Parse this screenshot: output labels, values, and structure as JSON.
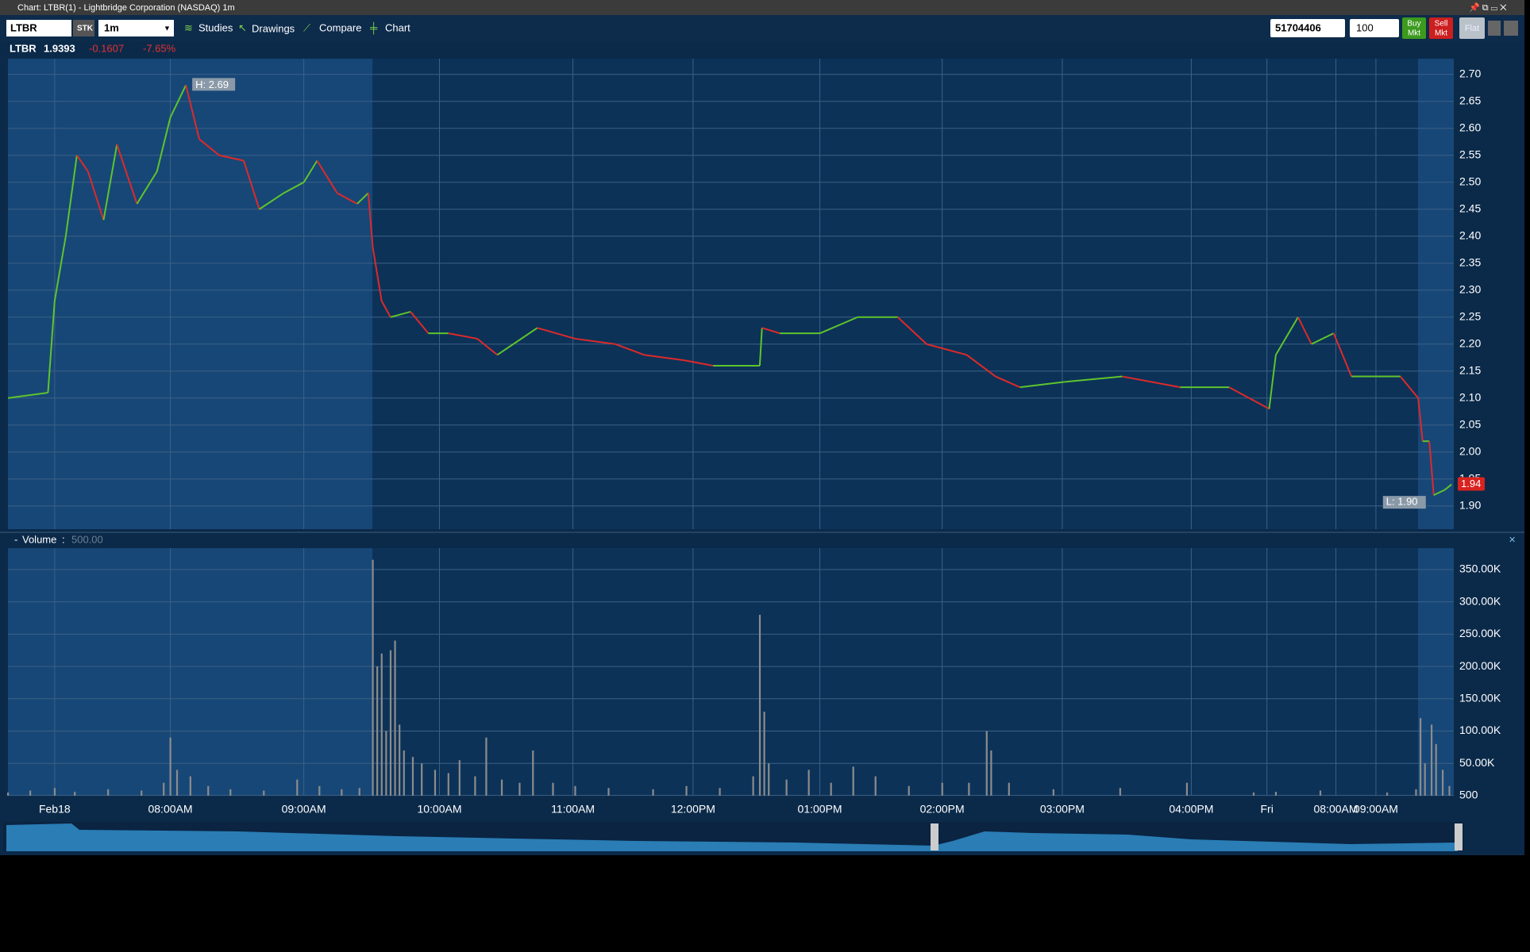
{
  "window": {
    "title": "Chart: LTBR(1) - Lightbridge Corporation (NASDAQ) 1m"
  },
  "toolbar": {
    "symbol": "LTBR",
    "sec_type": "STK",
    "interval": "1m",
    "buttons": [
      "Studies",
      "Drawings",
      "Compare",
      "Chart"
    ],
    "account": "51704406",
    "quantity": "100",
    "buy": [
      "Buy",
      "Mkt"
    ],
    "sell": [
      "Sell",
      "Mkt"
    ],
    "flat": "Flat"
  },
  "quote": {
    "symbol": "LTBR",
    "last": "1.9393",
    "change": "-0.1607",
    "change_pct": "-7.65%"
  },
  "chart_data": [
    {
      "type": "line",
      "ylim": [
        1.857,
        2.729
      ],
      "yticks": [
        {
          "value": 1.9,
          "label": "1.90"
        },
        1.95,
        {
          "value": 2.0,
          "label": "2.00"
        },
        2.05,
        {
          "value": 2.1,
          "label": "2.10"
        },
        2.15,
        {
          "value": 2.2,
          "label": "2.20"
        },
        2.25,
        {
          "value": 2.3,
          "label": "2.30"
        },
        2.35,
        {
          "value": 2.4,
          "label": "2.40"
        },
        2.45,
        {
          "value": 2.5,
          "label": "2.50"
        },
        2.55,
        {
          "value": 2.6,
          "label": "2.60"
        },
        2.65,
        {
          "value": 2.7,
          "label": "2.70"
        }
      ],
      "xlim": [
        0,
        650
      ],
      "grid": true,
      "colors": {
        "up": "#5fc42c",
        "down": "#dd2a2a"
      },
      "x": [
        0,
        18,
        21,
        26,
        31,
        36,
        43,
        49,
        58,
        67,
        73,
        80,
        86,
        95,
        106,
        113,
        124,
        133,
        139,
        148,
        157,
        162,
        164,
        168,
        172,
        181,
        189,
        198,
        211,
        220,
        238,
        255,
        273,
        286,
        304,
        317,
        338,
        339,
        347,
        365,
        382,
        400,
        413,
        431,
        444,
        455,
        475,
        501,
        527,
        549,
        567,
        570,
        580,
        586,
        596,
        604,
        626,
        634,
        636,
        639,
        641,
        646,
        649
      ],
      "values": [
        2.1,
        2.11,
        2.28,
        2.4,
        2.55,
        2.52,
        2.43,
        2.57,
        2.46,
        2.52,
        2.62,
        2.68,
        2.58,
        2.55,
        2.54,
        2.45,
        2.48,
        2.5,
        2.54,
        2.48,
        2.46,
        2.48,
        2.38,
        2.28,
        2.25,
        2.26,
        2.22,
        2.22,
        2.21,
        2.18,
        2.23,
        2.21,
        2.2,
        2.18,
        2.17,
        2.16,
        2.16,
        2.23,
        2.22,
        2.22,
        2.25,
        2.25,
        2.2,
        2.18,
        2.14,
        2.12,
        2.13,
        2.14,
        2.12,
        2.12,
        2.08,
        2.18,
        2.25,
        2.2,
        2.22,
        2.14,
        2.14,
        2.1,
        2.02,
        2.02,
        1.92,
        1.93,
        1.94
      ],
      "high_label": "H: 2.69",
      "low_label": "L: 1.90",
      "last_label": "1.94"
    },
    {
      "type": "bar",
      "title": "Volume",
      "current_value": "500.00",
      "ylim": [
        0,
        383000
      ],
      "yticks": [
        500,
        {
          "value": 50000,
          "label": "50.00K"
        },
        {
          "value": 100000,
          "label": "100.00K"
        },
        {
          "value": 150000,
          "label": "150.00K"
        },
        {
          "value": 200000,
          "label": "200.00K"
        },
        {
          "value": 250000,
          "label": "250.00K"
        },
        {
          "value": 300000,
          "label": "300.00K"
        },
        {
          "value": 350000,
          "label": "350.00K"
        }
      ],
      "xlim": [
        0,
        650
      ],
      "grid": true,
      "color": "#8c8c8c",
      "xticks": [
        {
          "value": 21,
          "label": "Feb18"
        },
        {
          "value": 73,
          "label": "08:00AM"
        },
        {
          "value": 133,
          "label": "09:00AM"
        },
        {
          "value": 194,
          "label": "10:00AM"
        },
        {
          "value": 254,
          "label": "11:00AM"
        },
        {
          "value": 308,
          "label": "12:00PM"
        },
        {
          "value": 365,
          "label": "01:00PM"
        },
        {
          "value": 420,
          "label": "02:00PM"
        },
        {
          "value": 474,
          "label": "03:00PM"
        },
        {
          "value": 532,
          "label": "04:00PM"
        },
        {
          "value": 566,
          "label": "Fri"
        },
        {
          "value": 597,
          "label": "08:00AM"
        },
        {
          "value": 615,
          "label": "09:00AM"
        }
      ],
      "x": [
        0,
        10,
        21,
        30,
        45,
        60,
        70,
        73,
        76,
        82,
        90,
        100,
        115,
        130,
        140,
        150,
        158,
        164,
        166,
        168,
        170,
        172,
        174,
        176,
        178,
        182,
        186,
        192,
        198,
        203,
        210,
        215,
        222,
        230,
        236,
        245,
        255,
        270,
        290,
        305,
        320,
        335,
        338,
        340,
        342,
        350,
        360,
        370,
        380,
        390,
        405,
        420,
        432,
        440,
        442,
        450,
        470,
        500,
        530,
        560,
        570,
        590,
        620,
        633,
        635,
        637,
        640,
        642,
        645,
        648
      ],
      "values": [
        5000,
        8000,
        12000,
        6000,
        10000,
        8000,
        20000,
        90000,
        40000,
        30000,
        15000,
        10000,
        8000,
        25000,
        15000,
        10000,
        12000,
        365000,
        200000,
        220000,
        100000,
        225000,
        240000,
        110000,
        70000,
        60000,
        50000,
        40000,
        35000,
        55000,
        30000,
        90000,
        25000,
        20000,
        70000,
        20000,
        15000,
        12000,
        10000,
        15000,
        12000,
        30000,
        280000,
        130000,
        50000,
        25000,
        40000,
        20000,
        45000,
        30000,
        15000,
        20000,
        20000,
        100000,
        70000,
        20000,
        10000,
        12000,
        20000,
        5000,
        6000,
        8000,
        5000,
        10000,
        120000,
        50000,
        110000,
        80000,
        40000,
        15000
      ]
    }
  ]
}
